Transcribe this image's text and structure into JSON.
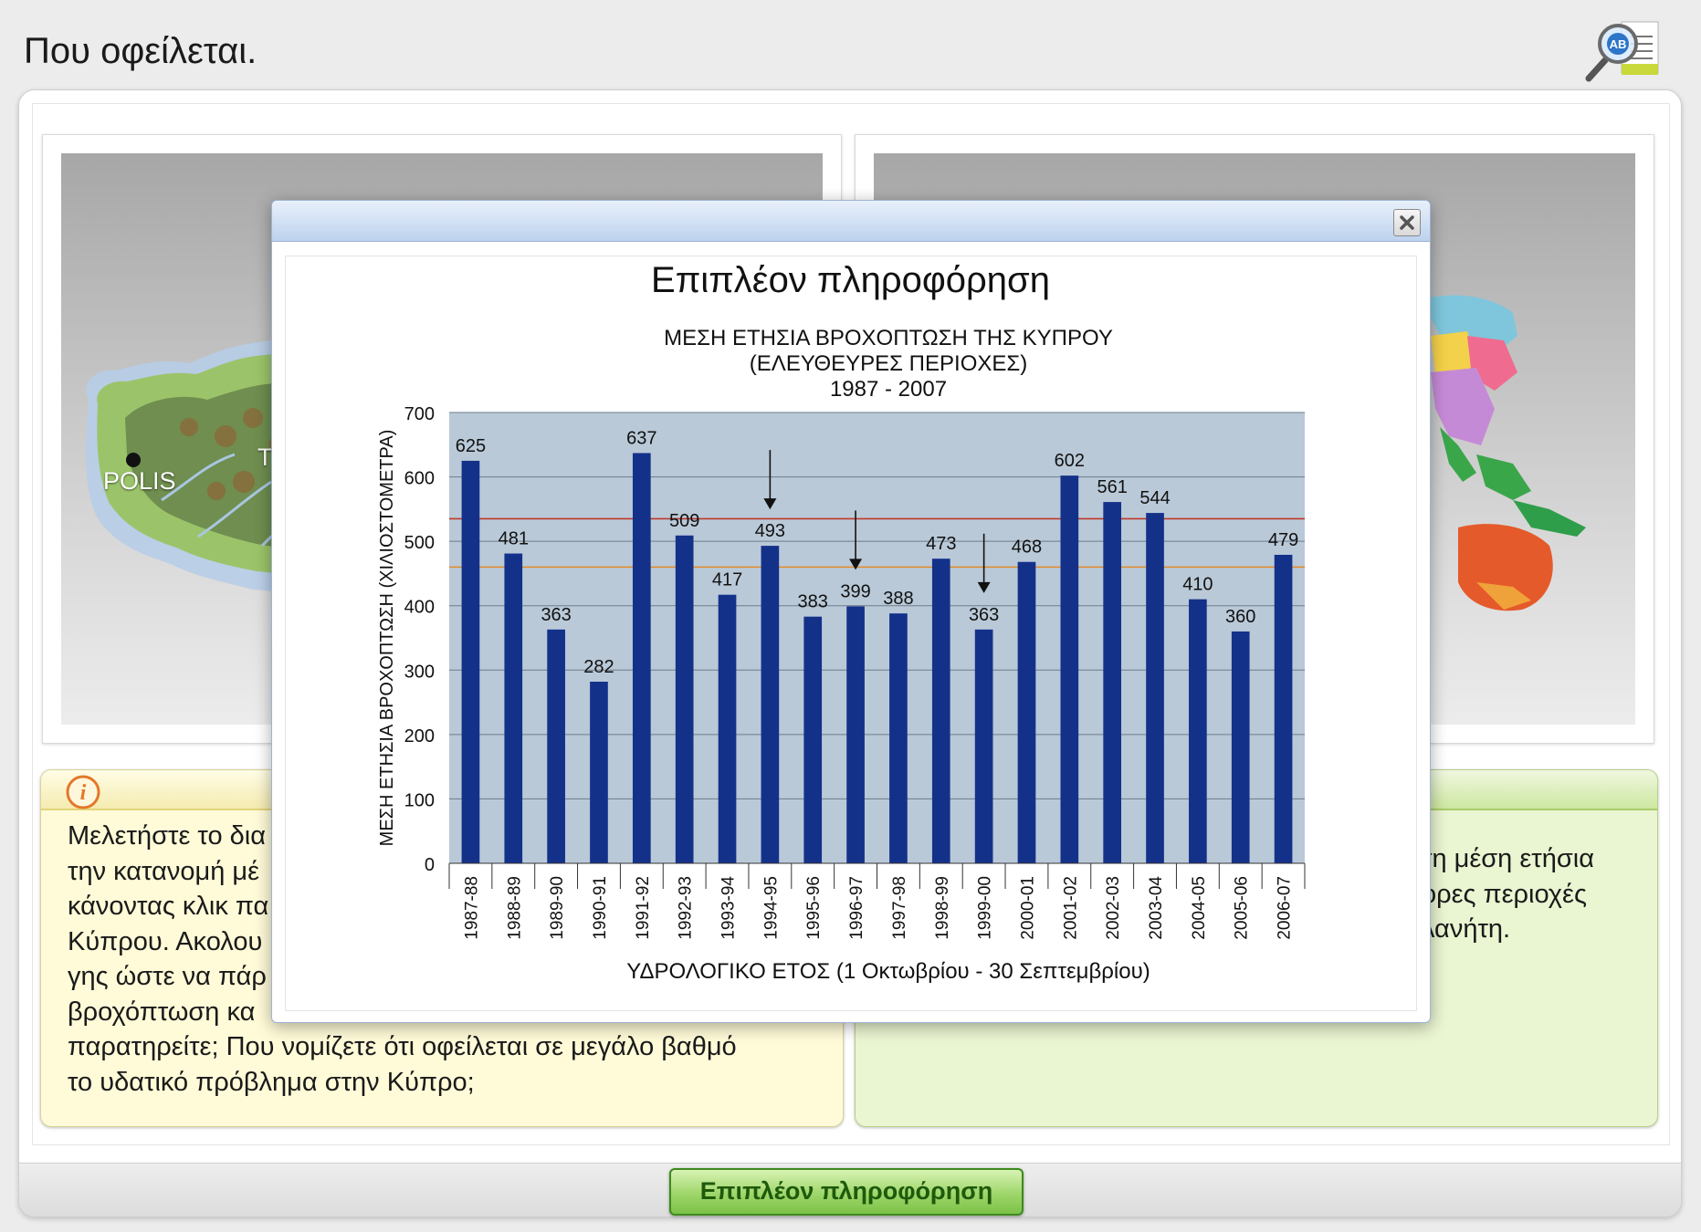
{
  "page": {
    "title": "Που οφείλεται."
  },
  "help_icon": {
    "badge": "AB",
    "icon": "magnifier-dictionary-icon"
  },
  "left_panel": {
    "labels": [
      "POLIS",
      "TI"
    ]
  },
  "info_left": {
    "icon": "info-icon",
    "lines": [
      "Μελετήστε το δια",
      "την κατανομή μέ",
      "κάνοντας κλικ πα",
      "Κύπρου. Ακολου",
      "γης ώστε να πάρ",
      "βροχόπτωση κα",
      "παρατηρείτε; Που νομίζετε ότι οφείλεται σε μεγάλο βαθμό",
      "το υδατικό πρόβλημα στην Κύπρο;"
    ]
  },
  "info_right": {
    "lines": [
      "τη μέση ετήσια",
      "ορες περιοχές",
      "λανήτη."
    ]
  },
  "footer": {
    "button_label": "Επιπλέον πληροφόρηση"
  },
  "modal": {
    "heading": "Επιπλέον πληροφόρηση",
    "close_icon": "close-icon"
  },
  "chart_data": {
    "type": "bar",
    "title": "ΜΕΣΗ ΕΤΗΣΙΑ ΒΡΟΧΟΠΤΩΣΗ ΤΗΣ ΚΥΠΡΟΥ",
    "subtitle": "(ΕΛΕΥΘΕΥΡΕΣ ΠΕΡΙΟΧΕΣ)",
    "period": "1987 - 2007",
    "xlabel": "ΥΔΡΟΛΟΓΙΚΟ ΕΤΟΣ (1 Οκτωβρίου - 30 Σεπτεμβρίου)",
    "ylabel": "ΜΕΣΗ ΕΤΗΣΙΑ ΒΡΟΧΟΠΤΩΣΗ (ΧΙΛΙΟΣΤΟΜΕΤΡΑ)",
    "ylim": [
      0,
      700
    ],
    "yticks": [
      "0",
      "100",
      "200",
      "300",
      "400",
      "500",
      "600",
      "700"
    ],
    "grid": true,
    "categories": [
      "1987-88",
      "1988-89",
      "1989-90",
      "1990-91",
      "1991-92",
      "1992-93",
      "1993-94",
      "1994-95",
      "1995-96",
      "1996-97",
      "1997-98",
      "1998-99",
      "1999-00",
      "2000-01",
      "2001-02",
      "2002-03",
      "2003-04",
      "2004-05",
      "2005-06",
      "2006-07"
    ],
    "values": [
      625,
      481,
      363,
      282,
      637,
      509,
      417,
      493,
      383,
      399,
      388,
      473,
      363,
      468,
      602,
      561,
      544,
      410,
      360,
      479
    ],
    "value_labels": [
      "625",
      "481",
      "363",
      "282",
      "637",
      "509",
      "417",
      "493",
      "383",
      "399",
      "388",
      "473",
      "363",
      "468",
      "602",
      "561",
      "544",
      "410",
      "360",
      "479"
    ],
    "reference_lines": [
      {
        "value": 535,
        "color": "#c0392b"
      },
      {
        "value": 460,
        "color": "#e08a2a"
      }
    ],
    "arrows_at": [
      "1994-95",
      "1996-97",
      "1999-00"
    ],
    "bar_color": "#14318a",
    "plot_background": "#b9c9d8"
  }
}
